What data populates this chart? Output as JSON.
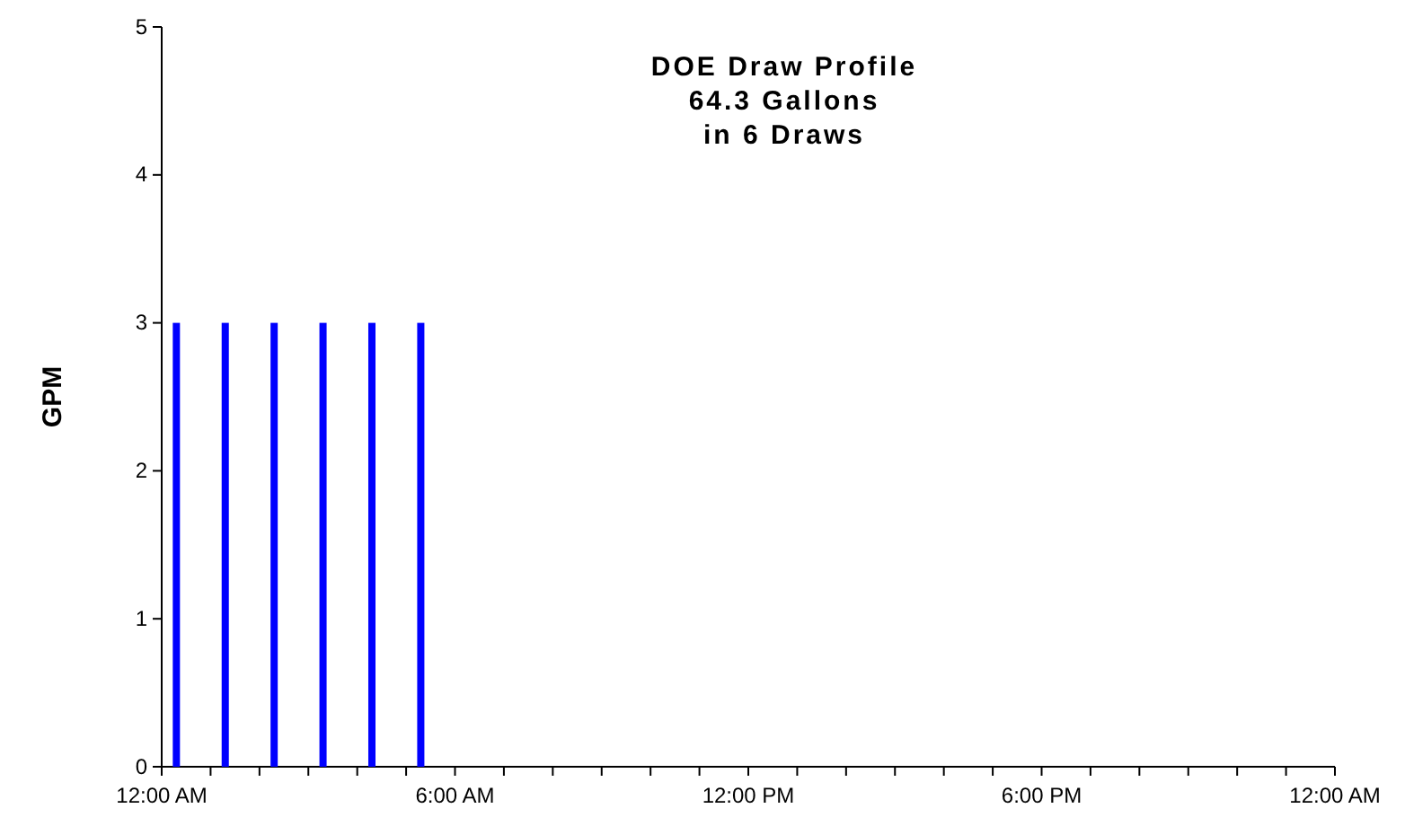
{
  "chart_data": {
    "type": "bar",
    "title": "DOE Draw Profile\n64.3 Gallons\nin 6 Draws",
    "ylabel": "GPM",
    "x": [
      0.3,
      1.3,
      2.3,
      3.3,
      4.3,
      5.3
    ],
    "series": [
      {
        "color": "#0000ff",
        "values": [
          3,
          3,
          3,
          3,
          3,
          3
        ]
      }
    ],
    "xlim": [
      0,
      24
    ],
    "xticks": [
      {
        "value": 0,
        "label": "12:00 AM"
      },
      {
        "value": 1,
        "label": null
      },
      {
        "value": 2,
        "label": null
      },
      {
        "value": 3,
        "label": null
      },
      {
        "value": 4,
        "label": null
      },
      {
        "value": 5,
        "label": null
      },
      {
        "value": 6,
        "label": "6:00 AM"
      },
      {
        "value": 7,
        "label": null
      },
      {
        "value": 8,
        "label": null
      },
      {
        "value": 9,
        "label": null
      },
      {
        "value": 10,
        "label": null
      },
      {
        "value": 11,
        "label": null
      },
      {
        "value": 12,
        "label": "12:00 PM"
      },
      {
        "value": 13,
        "label": null
      },
      {
        "value": 14,
        "label": null
      },
      {
        "value": 15,
        "label": null
      },
      {
        "value": 16,
        "label": null
      },
      {
        "value": 17,
        "label": null
      },
      {
        "value": 18,
        "label": "6:00 PM"
      },
      {
        "value": 19,
        "label": null
      },
      {
        "value": 20,
        "label": null
      },
      {
        "value": 21,
        "label": null
      },
      {
        "value": 22,
        "label": null
      },
      {
        "value": 23,
        "label": null
      },
      {
        "value": 24,
        "label": "12:00 AM"
      }
    ],
    "ylim": [
      0,
      5
    ],
    "yticks": [
      0,
      1,
      2,
      3,
      4,
      5
    ],
    "grid": false
  }
}
